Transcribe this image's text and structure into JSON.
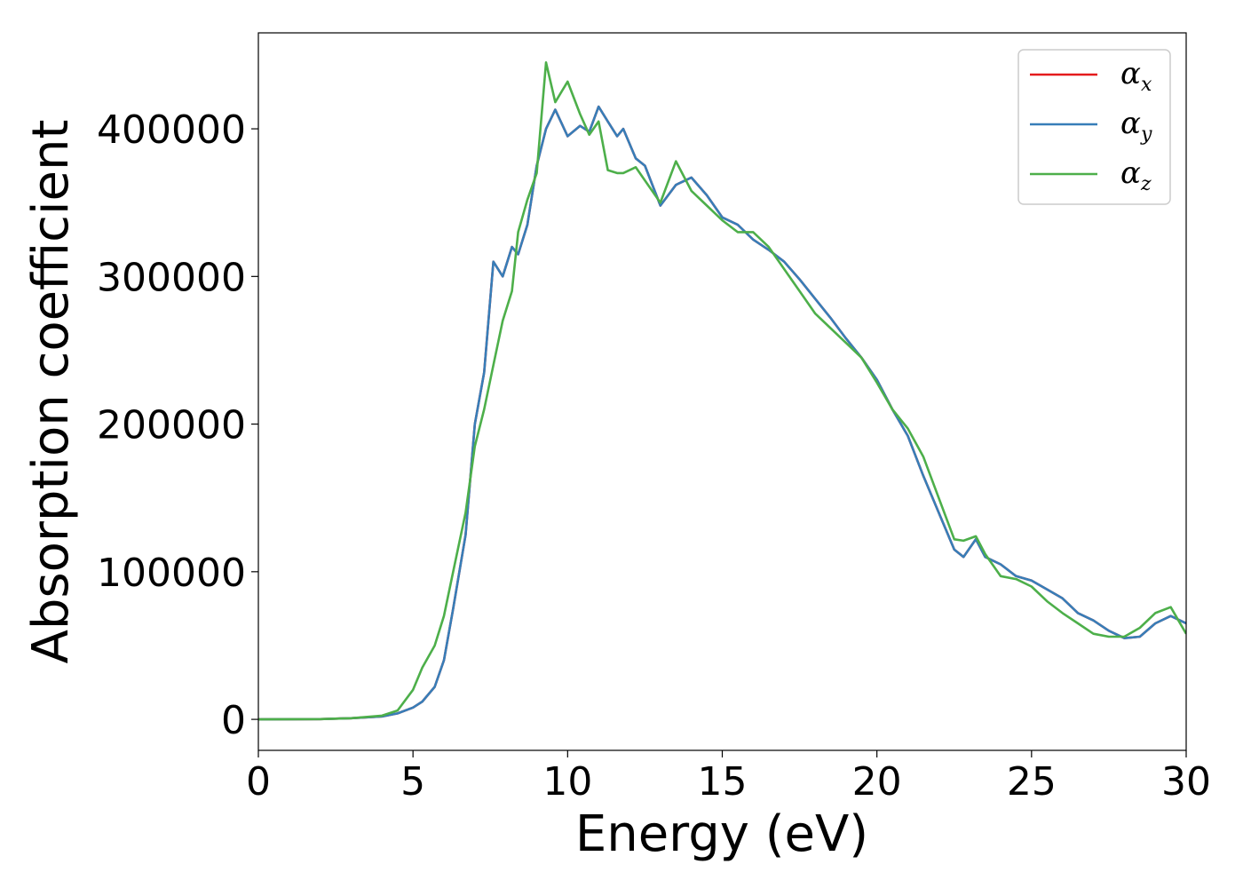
{
  "chart_data": {
    "type": "line",
    "xlabel": "Energy (eV)",
    "ylabel": "Absorption coefficient",
    "xlim": [
      0,
      30
    ],
    "ylim": [
      -21000,
      465000
    ],
    "x_ticks": [
      "0",
      "5",
      "10",
      "15",
      "20",
      "25",
      "30"
    ],
    "y_ticks": [
      "0",
      "100000",
      "200000",
      "300000",
      "400000"
    ],
    "grid": false,
    "legend_position": "top-right",
    "series": [
      {
        "name": "α_x",
        "legend_base": "α",
        "legend_sub": "x",
        "color": "#e41a1c",
        "x": [
          0,
          2,
          3,
          4,
          4.5,
          5,
          5.3,
          5.7,
          6.0,
          6.3,
          6.7,
          7.0,
          7.3,
          7.6,
          7.9,
          8.2,
          8.4,
          8.7,
          9.0,
          9.3,
          9.6,
          10.0,
          10.4,
          10.7,
          11.0,
          11.3,
          11.6,
          11.8,
          12.2,
          12.5,
          13.0,
          13.5,
          14.0,
          14.5,
          15.0,
          15.5,
          16.0,
          16.5,
          17.0,
          17.5,
          18.0,
          18.5,
          19.0,
          19.5,
          20.0,
          20.5,
          21.0,
          21.5,
          22.0,
          22.5,
          22.8,
          23.2,
          23.5,
          24.0,
          24.5,
          25.0,
          25.5,
          26.0,
          26.5,
          27.0,
          27.5,
          28.0,
          28.5,
          29.0,
          29.5,
          30.0
        ],
        "values": [
          0,
          200,
          800,
          2000,
          4000,
          8000,
          12000,
          22000,
          40000,
          75000,
          125000,
          200000,
          235000,
          310000,
          300000,
          320000,
          315000,
          335000,
          375000,
          400000,
          413000,
          395000,
          402000,
          398000,
          415000,
          405000,
          395000,
          400000,
          380000,
          375000,
          348000,
          362000,
          367000,
          355000,
          340000,
          335000,
          325000,
          318000,
          310000,
          298000,
          285000,
          272000,
          258000,
          245000,
          230000,
          210000,
          192000,
          165000,
          140000,
          115000,
          110000,
          122000,
          110000,
          105000,
          97000,
          94000,
          88000,
          82000,
          72000,
          67000,
          60000,
          55000,
          56000,
          65000,
          70000,
          65000
        ]
      },
      {
        "name": "α_y",
        "legend_base": "α",
        "legend_sub": "y",
        "color": "#377eb8",
        "x": [
          0,
          2,
          3,
          4,
          4.5,
          5,
          5.3,
          5.7,
          6.0,
          6.3,
          6.7,
          7.0,
          7.3,
          7.6,
          7.9,
          8.2,
          8.4,
          8.7,
          9.0,
          9.3,
          9.6,
          10.0,
          10.4,
          10.7,
          11.0,
          11.3,
          11.6,
          11.8,
          12.2,
          12.5,
          13.0,
          13.5,
          14.0,
          14.5,
          15.0,
          15.5,
          16.0,
          16.5,
          17.0,
          17.5,
          18.0,
          18.5,
          19.0,
          19.5,
          20.0,
          20.5,
          21.0,
          21.5,
          22.0,
          22.5,
          22.8,
          23.2,
          23.5,
          24.0,
          24.5,
          25.0,
          25.5,
          26.0,
          26.5,
          27.0,
          27.5,
          28.0,
          28.5,
          29.0,
          29.5,
          30.0
        ],
        "values": [
          0,
          200,
          800,
          2000,
          4000,
          8000,
          12000,
          22000,
          40000,
          75000,
          125000,
          200000,
          235000,
          310000,
          300000,
          320000,
          315000,
          335000,
          375000,
          400000,
          413000,
          395000,
          402000,
          398000,
          415000,
          405000,
          395000,
          400000,
          380000,
          375000,
          348000,
          362000,
          367000,
          355000,
          340000,
          335000,
          325000,
          318000,
          310000,
          298000,
          285000,
          272000,
          258000,
          245000,
          230000,
          210000,
          192000,
          165000,
          140000,
          115000,
          110000,
          122000,
          110000,
          105000,
          97000,
          94000,
          88000,
          82000,
          72000,
          67000,
          60000,
          55000,
          56000,
          65000,
          70000,
          65000
        ]
      },
      {
        "name": "α_z",
        "legend_base": "α",
        "legend_sub": "z",
        "color": "#4daf4a",
        "x": [
          0,
          2,
          3,
          4,
          4.5,
          5,
          5.3,
          5.7,
          6.0,
          6.3,
          6.7,
          7.0,
          7.3,
          7.6,
          7.9,
          8.2,
          8.4,
          8.7,
          9.0,
          9.3,
          9.6,
          10.0,
          10.4,
          10.7,
          11.0,
          11.3,
          11.6,
          11.8,
          12.2,
          12.5,
          13.0,
          13.5,
          14.0,
          14.5,
          15.0,
          15.5,
          16.0,
          16.5,
          17.0,
          17.5,
          18.0,
          18.5,
          19.0,
          19.5,
          20.0,
          20.5,
          21.0,
          21.5,
          22.0,
          22.5,
          22.8,
          23.2,
          23.5,
          24.0,
          24.5,
          25.0,
          25.5,
          26.0,
          26.5,
          27.0,
          27.5,
          28.0,
          28.5,
          29.0,
          29.5,
          30.0
        ],
        "values": [
          0,
          200,
          800,
          2500,
          6000,
          20000,
          35000,
          50000,
          70000,
          100000,
          140000,
          185000,
          210000,
          240000,
          270000,
          290000,
          330000,
          352000,
          370000,
          445000,
          418000,
          432000,
          410000,
          396000,
          405000,
          372000,
          370000,
          370000,
          374000,
          365000,
          350000,
          378000,
          358000,
          348000,
          338000,
          330000,
          330000,
          320000,
          305000,
          290000,
          275000,
          265000,
          255000,
          245000,
          228000,
          210000,
          197000,
          178000,
          150000,
          122000,
          121000,
          124000,
          112000,
          97000,
          95000,
          90000,
          80000,
          72000,
          65000,
          58000,
          56000,
          56000,
          62000,
          72000,
          76000,
          58000
        ]
      }
    ]
  }
}
